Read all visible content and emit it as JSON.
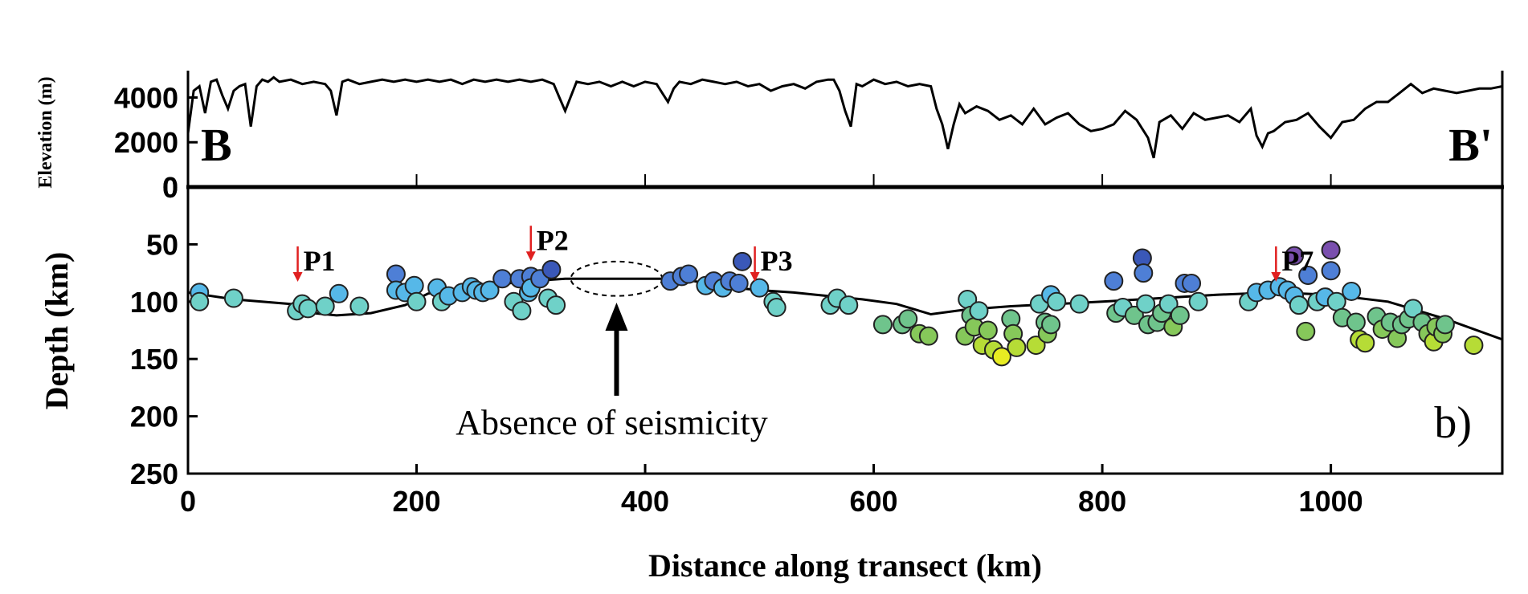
{
  "chart_data": [
    {
      "type": "line",
      "panel": "elevation-profile",
      "ylabel": "Elevation (m)",
      "yticks": [
        0,
        2000,
        4000
      ],
      "ylim": [
        0,
        5200
      ],
      "xlim": [
        0,
        1150
      ],
      "end_labels": {
        "left": "B",
        "right": "B'"
      },
      "x": [
        0,
        5,
        10,
        15,
        20,
        25,
        30,
        35,
        40,
        45,
        50,
        55,
        60,
        65,
        70,
        75,
        80,
        90,
        100,
        110,
        120,
        125,
        130,
        135,
        140,
        150,
        160,
        170,
        180,
        190,
        200,
        210,
        220,
        230,
        240,
        250,
        260,
        270,
        280,
        290,
        300,
        310,
        320,
        325,
        330,
        340,
        350,
        360,
        370,
        380,
        390,
        400,
        410,
        415,
        420,
        425,
        430,
        440,
        450,
        460,
        470,
        480,
        490,
        500,
        510,
        520,
        530,
        540,
        550,
        560,
        565,
        570,
        575,
        580,
        585,
        590,
        600,
        610,
        620,
        630,
        640,
        650,
        655,
        660,
        665,
        670,
        675,
        680,
        690,
        700,
        710,
        720,
        730,
        740,
        750,
        760,
        770,
        780,
        790,
        800,
        810,
        820,
        830,
        840,
        845,
        850,
        860,
        870,
        880,
        890,
        900,
        910,
        920,
        930,
        935,
        940,
        945,
        950,
        960,
        970,
        980,
        990,
        1000,
        1010,
        1020,
        1030,
        1040,
        1050,
        1060,
        1070,
        1080,
        1090,
        1100,
        1110,
        1120,
        1130,
        1140,
        1150
      ],
      "y": [
        2400,
        4300,
        4500,
        3300,
        4700,
        4800,
        4100,
        3500,
        4300,
        4500,
        4600,
        2700,
        4500,
        4800,
        4700,
        4900,
        4700,
        4800,
        4600,
        4700,
        4600,
        4300,
        3200,
        4700,
        4800,
        4600,
        4700,
        4800,
        4700,
        4800,
        4700,
        4800,
        4700,
        4800,
        4600,
        4800,
        4700,
        4800,
        4700,
        4800,
        4700,
        4800,
        4600,
        4000,
        3400,
        4700,
        4600,
        4700,
        4500,
        4700,
        4500,
        4700,
        4600,
        4200,
        3800,
        4400,
        4700,
        4600,
        4800,
        4700,
        4600,
        4700,
        4500,
        4600,
        4300,
        4500,
        4600,
        4400,
        4700,
        4800,
        4800,
        4300,
        3400,
        2700,
        4600,
        4500,
        4800,
        4600,
        4700,
        4500,
        4600,
        4500,
        3500,
        2800,
        1700,
        2800,
        3700,
        3300,
        3600,
        3400,
        3000,
        3200,
        2800,
        3500,
        2800,
        3100,
        3300,
        2800,
        2500,
        2600,
        2800,
        3400,
        3000,
        2200,
        1300,
        2900,
        3200,
        2600,
        3300,
        3000,
        3100,
        3200,
        2900,
        3500,
        2300,
        1800,
        2400,
        2500,
        2900,
        3000,
        3300,
        2700,
        2200,
        2900,
        3000,
        3500,
        3800,
        3800,
        4200,
        4600,
        4200,
        4400,
        4300,
        4200,
        4300,
        4400,
        4400,
        4500
      ],
      "xlabel": ""
    },
    {
      "type": "scatter",
      "panel": "depth-section",
      "panel_label": "b)",
      "xlabel": "Distance along transect (km)",
      "ylabel": "Depth (km)",
      "xlim": [
        0,
        1150
      ],
      "ylim": [
        250,
        0
      ],
      "xticks": [
        0,
        200,
        400,
        600,
        800,
        1000
      ],
      "yticks": [
        0,
        50,
        100,
        150,
        200,
        250
      ],
      "color_scale": "depth (purple = shallow, yellow = deep)",
      "slab_line": {
        "x": [
          0,
          40,
          90,
          110,
          130,
          160,
          190,
          210,
          240,
          270,
          300,
          330,
          360,
          380,
          400,
          430,
          460,
          480,
          500,
          530,
          560,
          590,
          620,
          650,
          680,
          720,
          760,
          800,
          850,
          900,
          950,
          1000,
          1050,
          1100,
          1150
        ],
        "y": [
          92,
          98,
          102,
          110,
          112,
          110,
          103,
          93,
          88,
          85,
          82,
          80,
          80,
          80,
          80,
          80,
          85,
          88,
          90,
          92,
          95,
          98,
          102,
          111,
          107,
          104,
          102,
          100,
          97,
          94,
          92,
          94,
          100,
          115,
          133
        ]
      },
      "gap_region": {
        "x_center": 375,
        "y_center": 80,
        "half_width_km": 40,
        "half_height_km": 15
      },
      "annotations": [
        {
          "label": "P1",
          "x": 96,
          "y": 70
        },
        {
          "label": "P2",
          "x": 300,
          "y": 52
        },
        {
          "label": "P3",
          "x": 496,
          "y": 70
        },
        {
          "label": "P7",
          "x": 952,
          "y": 70
        },
        {
          "label": "Absence of seismicity",
          "x": 375,
          "y": 205
        }
      ],
      "points": [
        {
          "x": 10,
          "y": 92
        },
        {
          "x": 10,
          "y": 100
        },
        {
          "x": 40,
          "y": 97
        },
        {
          "x": 95,
          "y": 108
        },
        {
          "x": 100,
          "y": 102
        },
        {
          "x": 105,
          "y": 106
        },
        {
          "x": 120,
          "y": 104
        },
        {
          "x": 132,
          "y": 93
        },
        {
          "x": 150,
          "y": 104
        },
        {
          "x": 182,
          "y": 76
        },
        {
          "x": 182,
          "y": 90
        },
        {
          "x": 190,
          "y": 92
        },
        {
          "x": 198,
          "y": 86
        },
        {
          "x": 200,
          "y": 100
        },
        {
          "x": 218,
          "y": 88
        },
        {
          "x": 222,
          "y": 100
        },
        {
          "x": 228,
          "y": 95
        },
        {
          "x": 240,
          "y": 92
        },
        {
          "x": 248,
          "y": 87
        },
        {
          "x": 252,
          "y": 90
        },
        {
          "x": 258,
          "y": 92
        },
        {
          "x": 264,
          "y": 90
        },
        {
          "x": 275,
          "y": 80
        },
        {
          "x": 285,
          "y": 100
        },
        {
          "x": 290,
          "y": 80
        },
        {
          "x": 292,
          "y": 108
        },
        {
          "x": 298,
          "y": 92
        },
        {
          "x": 300,
          "y": 78
        },
        {
          "x": 300,
          "y": 88
        },
        {
          "x": 308,
          "y": 80
        },
        {
          "x": 315,
          "y": 97
        },
        {
          "x": 318,
          "y": 72
        },
        {
          "x": 322,
          "y": 103
        },
        {
          "x": 422,
          "y": 82
        },
        {
          "x": 432,
          "y": 78
        },
        {
          "x": 438,
          "y": 76
        },
        {
          "x": 453,
          "y": 86
        },
        {
          "x": 460,
          "y": 82
        },
        {
          "x": 468,
          "y": 88
        },
        {
          "x": 474,
          "y": 82
        },
        {
          "x": 482,
          "y": 84
        },
        {
          "x": 485,
          "y": 65
        },
        {
          "x": 500,
          "y": 88
        },
        {
          "x": 512,
          "y": 100
        },
        {
          "x": 515,
          "y": 105
        },
        {
          "x": 562,
          "y": 103
        },
        {
          "x": 568,
          "y": 97
        },
        {
          "x": 578,
          "y": 103
        },
        {
          "x": 608,
          "y": 120
        },
        {
          "x": 625,
          "y": 120
        },
        {
          "x": 630,
          "y": 115
        },
        {
          "x": 640,
          "y": 128
        },
        {
          "x": 648,
          "y": 130
        },
        {
          "x": 680,
          "y": 130
        },
        {
          "x": 682,
          "y": 98
        },
        {
          "x": 685,
          "y": 112
        },
        {
          "x": 688,
          "y": 122
        },
        {
          "x": 692,
          "y": 108
        },
        {
          "x": 695,
          "y": 138
        },
        {
          "x": 700,
          "y": 125
        },
        {
          "x": 705,
          "y": 142
        },
        {
          "x": 712,
          "y": 148
        },
        {
          "x": 720,
          "y": 115
        },
        {
          "x": 722,
          "y": 128
        },
        {
          "x": 725,
          "y": 140
        },
        {
          "x": 742,
          "y": 138
        },
        {
          "x": 745,
          "y": 102
        },
        {
          "x": 750,
          "y": 118
        },
        {
          "x": 752,
          "y": 128
        },
        {
          "x": 755,
          "y": 120
        },
        {
          "x": 755,
          "y": 94
        },
        {
          "x": 760,
          "y": 100
        },
        {
          "x": 780,
          "y": 102
        },
        {
          "x": 810,
          "y": 82
        },
        {
          "x": 812,
          "y": 110
        },
        {
          "x": 818,
          "y": 105
        },
        {
          "x": 828,
          "y": 112
        },
        {
          "x": 835,
          "y": 62
        },
        {
          "x": 836,
          "y": 75
        },
        {
          "x": 838,
          "y": 102
        },
        {
          "x": 840,
          "y": 120
        },
        {
          "x": 848,
          "y": 118
        },
        {
          "x": 852,
          "y": 110
        },
        {
          "x": 858,
          "y": 102
        },
        {
          "x": 862,
          "y": 122
        },
        {
          "x": 868,
          "y": 112
        },
        {
          "x": 872,
          "y": 84
        },
        {
          "x": 878,
          "y": 84
        },
        {
          "x": 884,
          "y": 100
        },
        {
          "x": 928,
          "y": 100
        },
        {
          "x": 935,
          "y": 92
        },
        {
          "x": 945,
          "y": 90
        },
        {
          "x": 955,
          "y": 87
        },
        {
          "x": 962,
          "y": 90
        },
        {
          "x": 968,
          "y": 95
        },
        {
          "x": 968,
          "y": 60
        },
        {
          "x": 972,
          "y": 103
        },
        {
          "x": 978,
          "y": 126
        },
        {
          "x": 980,
          "y": 77
        },
        {
          "x": 988,
          "y": 100
        },
        {
          "x": 995,
          "y": 96
        },
        {
          "x": 1000,
          "y": 55
        },
        {
          "x": 1000,
          "y": 73
        },
        {
          "x": 1005,
          "y": 100
        },
        {
          "x": 1010,
          "y": 114
        },
        {
          "x": 1018,
          "y": 91
        },
        {
          "x": 1022,
          "y": 118
        },
        {
          "x": 1025,
          "y": 133
        },
        {
          "x": 1030,
          "y": 136
        },
        {
          "x": 1040,
          "y": 113
        },
        {
          "x": 1045,
          "y": 124
        },
        {
          "x": 1052,
          "y": 118
        },
        {
          "x": 1058,
          "y": 132
        },
        {
          "x": 1062,
          "y": 120
        },
        {
          "x": 1068,
          "y": 115
        },
        {
          "x": 1072,
          "y": 106
        },
        {
          "x": 1080,
          "y": 118
        },
        {
          "x": 1085,
          "y": 128
        },
        {
          "x": 1090,
          "y": 135
        },
        {
          "x": 1092,
          "y": 122
        },
        {
          "x": 1098,
          "y": 128
        },
        {
          "x": 1100,
          "y": 120
        },
        {
          "x": 1125,
          "y": 138
        }
      ]
    }
  ],
  "colors": {
    "red_arrow": "#e02020",
    "depth_ramp": [
      "#7a4fae",
      "#3a58b8",
      "#4e7fd6",
      "#56b8e8",
      "#6fd1c8",
      "#6fc48c",
      "#86c85a",
      "#b6dc36",
      "#e8ec22"
    ]
  }
}
